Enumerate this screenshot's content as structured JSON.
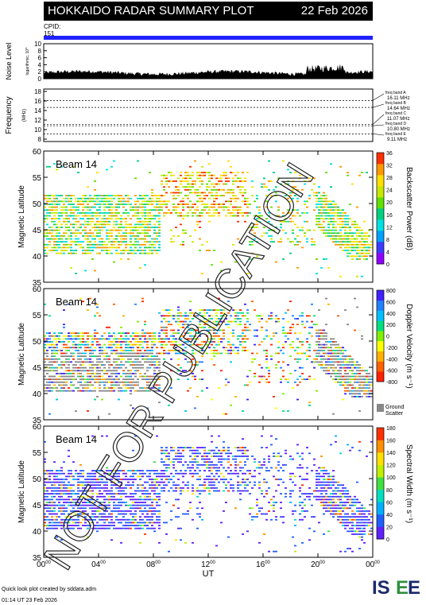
{
  "header": {
    "title": "HOKKAIDO RADAR SUMMARY PLOT",
    "date": "22 Feb 2026",
    "cpid_label": "CPID:",
    "cpid_value": "151"
  },
  "noise_panel": {
    "ylabel": "Noise Level",
    "ylabel_sub": "logarithmic, 10^",
    "yticks": [
      "0",
      "2",
      "4",
      "6",
      "8",
      "10"
    ]
  },
  "freq_panel": {
    "ylabel": "Frequency",
    "unit": "(MHz)",
    "yticks": [
      "8",
      "10",
      "12",
      "14",
      "16",
      "18"
    ],
    "bands": [
      {
        "name": "freq band A",
        "value": "16.11 MHz"
      },
      {
        "name": "freq band B",
        "value": "14.64 MHz"
      },
      {
        "name": "freq band C",
        "value": "11.07 MHz"
      },
      {
        "name": "freq band D",
        "value": "10.80 MHz"
      },
      {
        "name": "freq band E",
        "value": "9.11 MHz"
      }
    ]
  },
  "colors": {
    "title_bg": "#000000",
    "cpid_bar": "#2020ff",
    "ground_scatter": "#888888"
  },
  "chart_data": [
    {
      "type": "heatmap",
      "name": "Backscatter Power",
      "beam_label": "Beam 14",
      "ylabel": "Magnetic Latitude",
      "yticks": [
        "35",
        "40",
        "45",
        "50",
        "55",
        "60"
      ],
      "ylim": [
        35,
        60
      ],
      "colorbar_label": "Backscatter Power (dB)",
      "colorbar_ticks": [
        "0",
        "4",
        "8",
        "12",
        "16",
        "20",
        "24",
        "28",
        "32",
        "36"
      ],
      "colorbar_range": [
        0,
        36
      ]
    },
    {
      "type": "heatmap",
      "name": "Doppler Velocity",
      "beam_label": "Beam 14",
      "ylabel": "Magnetic Latitude",
      "yticks": [
        "35",
        "40",
        "45",
        "50",
        "55",
        "60"
      ],
      "ylim": [
        35,
        60
      ],
      "colorbar_label": "Doppler Velocity (m s⁻¹)",
      "colorbar_ticks": [
        "800",
        "600",
        "400",
        "200",
        "0",
        "-200",
        "-400",
        "-600",
        "-800"
      ],
      "colorbar_range": [
        800,
        -800
      ],
      "ground_label": [
        "Ground",
        "Scatter"
      ]
    },
    {
      "type": "heatmap",
      "name": "Spectral Width",
      "beam_label": "Beam 14",
      "ylabel": "Magnetic Latitude",
      "yticks": [
        "35",
        "40",
        "45",
        "50",
        "55",
        "60"
      ],
      "ylim": [
        35,
        60
      ],
      "colorbar_label": "Spectral Width (m s⁻¹)",
      "colorbar_ticks": [
        "0",
        "20",
        "40",
        "60",
        "80",
        "100",
        "120",
        "140",
        "160",
        "180"
      ],
      "colorbar_range": [
        0,
        180
      ]
    }
  ],
  "xaxis": {
    "label": "UT",
    "ticks": [
      {
        "h": "00",
        "m": "00"
      },
      {
        "h": "04",
        "m": "00"
      },
      {
        "h": "08",
        "m": "00"
      },
      {
        "h": "12",
        "m": "00"
      },
      {
        "h": "16",
        "m": "00"
      },
      {
        "h": "20",
        "m": "00"
      },
      {
        "h": "00",
        "m": "00"
      }
    ]
  },
  "watermark": "NOT FOR PUBLICATION",
  "footer": {
    "line1": "Quick look plot created by sddata.adm",
    "line2": "01:14 UT 23 Feb 2026"
  },
  "logo": "ISEE"
}
